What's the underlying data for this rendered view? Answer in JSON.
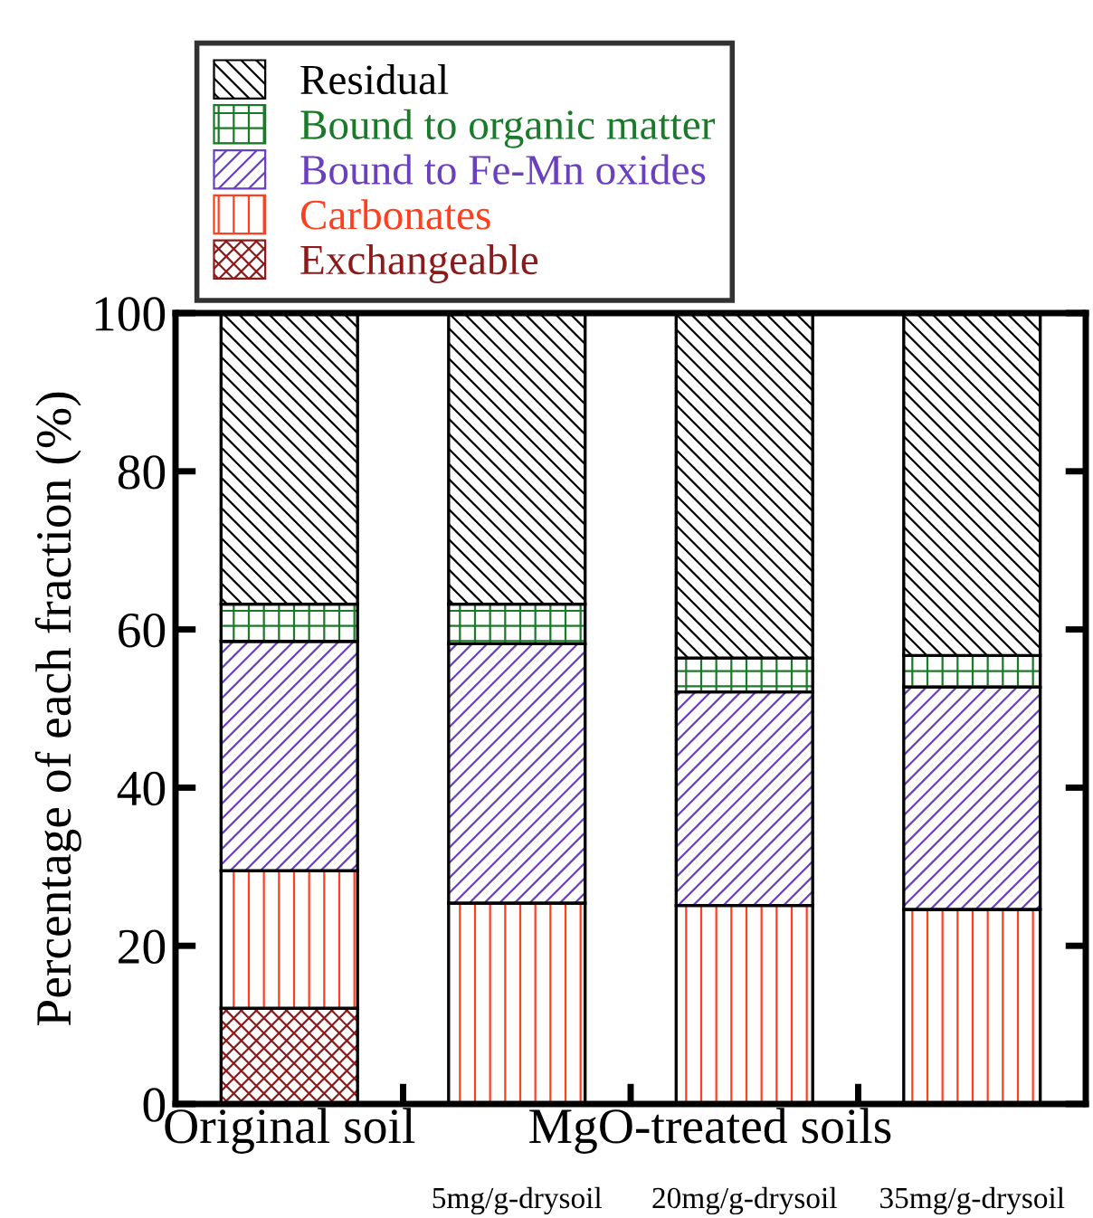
{
  "chart_data": {
    "type": "bar",
    "stacked": true,
    "ylabel": "Percentage of each fraction (%)",
    "categories": [
      "Original soil",
      "5mg/g-drysoil",
      "20mg/g-drysoil",
      "35mg/g-drysoil"
    ],
    "series": [
      {
        "name": "Exchangeable",
        "color": "#8b1a1a",
        "values": [
          12.1,
          null,
          null,
          null
        ]
      },
      {
        "name": "Carbonates",
        "color": "#ff4020",
        "values": [
          17.4,
          25.4,
          25.1,
          24.6
        ]
      },
      {
        "name": "Bound to Fe-Mn oxides",
        "color": "#6a3fc0",
        "values": [
          29.0,
          32.8,
          27.0,
          28.1
        ]
      },
      {
        "name": "Bound to organic matter",
        "color": "#1a7a2a",
        "values": [
          4.7,
          5.0,
          4.3,
          4.0
        ]
      },
      {
        "name": "Residual",
        "color": "#000000",
        "values": [
          36.8,
          36.8,
          43.6,
          43.3
        ]
      }
    ],
    "ylim": [
      0,
      100
    ],
    "yticks": [
      0,
      20,
      40,
      60,
      80,
      100
    ],
    "grid": false,
    "legend": "top left",
    "annotations": [
      "MgO-treated soils"
    ]
  }
}
